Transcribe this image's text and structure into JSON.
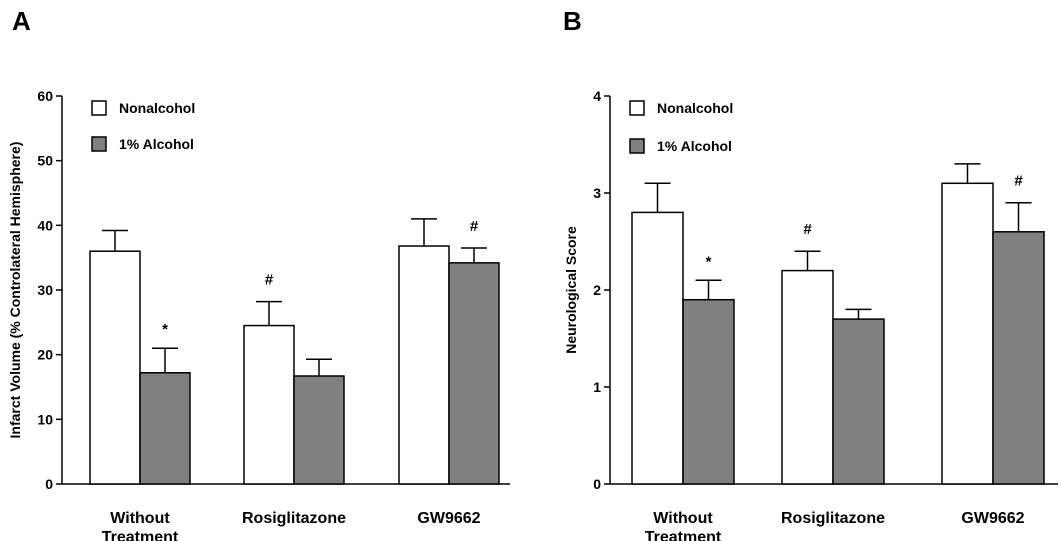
{
  "chart_data": [
    {
      "panel": "A",
      "type": "bar",
      "ylabel": "Infarct Volume (% Controlateral Hemisphere)",
      "xlabel": "",
      "ylim": [
        0,
        60
      ],
      "yticks": [
        0,
        10,
        20,
        30,
        40,
        50,
        60
      ],
      "categories": [
        [
          "Without",
          "Treatment"
        ],
        [
          "Rosiglitazone"
        ],
        [
          "GW9662"
        ]
      ],
      "legend_position": "top-left",
      "series": [
        {
          "name": "Nonalcohol",
          "color": "#ffffff",
          "values": [
            36,
            24.5,
            36.8
          ],
          "errors": [
            3.2,
            3.7,
            4.2
          ],
          "markers": [
            "",
            "#",
            ""
          ]
        },
        {
          "name": "1% Alcohol",
          "color": "#808080",
          "values": [
            17.2,
            16.7,
            34.2
          ],
          "errors": [
            3.8,
            2.6,
            2.3
          ],
          "markers": [
            "*",
            "",
            "#"
          ]
        }
      ]
    },
    {
      "panel": "B",
      "type": "bar",
      "ylabel": "Neurological Score",
      "xlabel": "",
      "ylim": [
        0,
        4
      ],
      "yticks": [
        0,
        1,
        2,
        3,
        4
      ],
      "categories": [
        [
          "Without",
          "Treatment"
        ],
        [
          "Rosiglitazone"
        ],
        [
          "GW9662"
        ]
      ],
      "legend_position": "top-left",
      "series": [
        {
          "name": "Nonalcohol",
          "color": "#ffffff",
          "values": [
            2.8,
            2.2,
            3.1
          ],
          "errors": [
            0.3,
            0.2,
            0.2
          ],
          "markers": [
            "",
            "#",
            ""
          ]
        },
        {
          "name": "1% Alcohol",
          "color": "#808080",
          "values": [
            1.9,
            1.7,
            2.6
          ],
          "errors": [
            0.2,
            0.1,
            0.3
          ],
          "markers": [
            "*",
            "",
            "#"
          ]
        }
      ]
    }
  ]
}
